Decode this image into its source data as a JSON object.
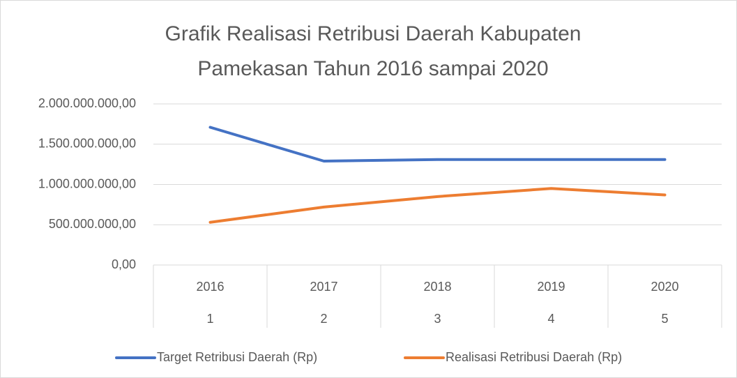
{
  "chart_data": {
    "type": "line",
    "title": [
      "Grafik Realisasi Retribusi Daerah Kabupaten",
      "Pamekasan Tahun 2016 sampai 2020"
    ],
    "categories": [
      "2016",
      "2017",
      "2018",
      "2019",
      "2020"
    ],
    "categories_level2": [
      "1",
      "2",
      "3",
      "4",
      "5"
    ],
    "series": [
      {
        "name": "Target Retribusi Daerah (Rp)",
        "color": "#4472c4",
        "values": [
          1710000000,
          1290000000,
          1310000000,
          1310000000,
          1310000000
        ]
      },
      {
        "name": "Realisasi Retribusi Daerah (Rp)",
        "color": "#ed7d31",
        "values": [
          530000000,
          720000000,
          850000000,
          950000000,
          870000000
        ]
      }
    ],
    "ylim": [
      0,
      2000000000
    ],
    "yticks": [
      {
        "value": 0,
        "label": "0,00"
      },
      {
        "value": 500000000,
        "label": "500.000.000,00"
      },
      {
        "value": 1000000000,
        "label": "1.000.000.000,00"
      },
      {
        "value": 1500000000,
        "label": "1.500.000.000,00"
      },
      {
        "value": 2000000000,
        "label": "2.000.000.000,00"
      }
    ],
    "grid": true,
    "legend": "bottom"
  }
}
